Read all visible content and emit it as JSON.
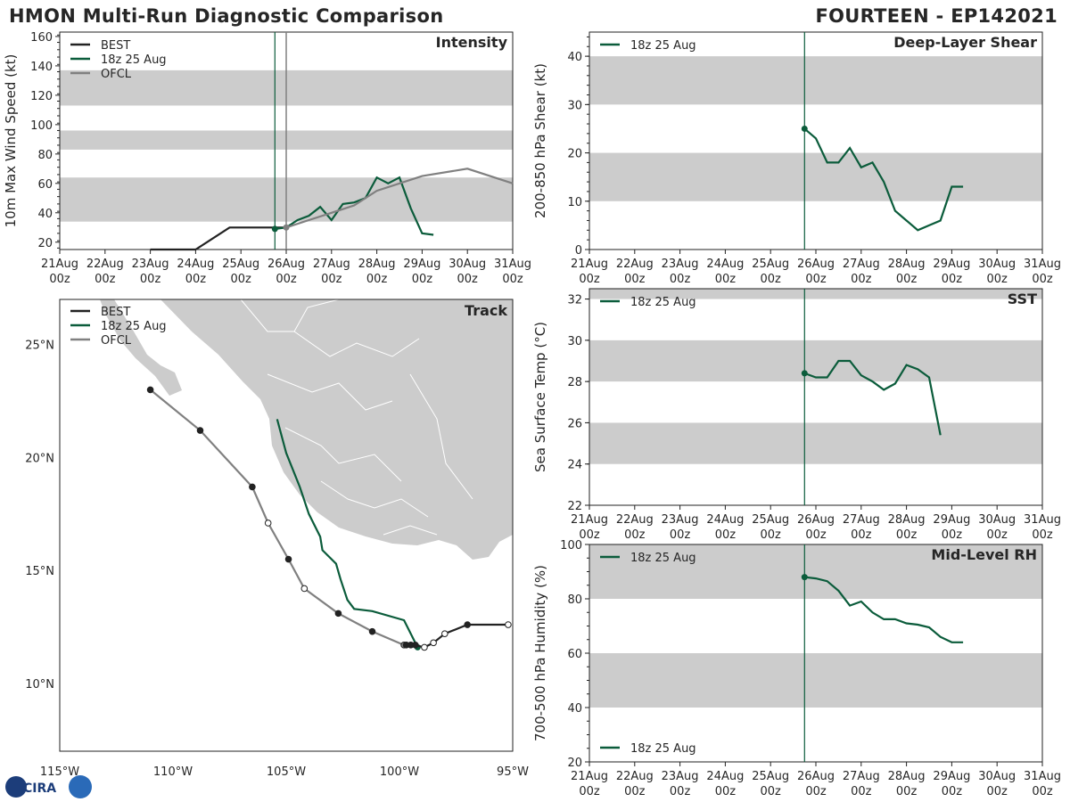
{
  "header": {
    "title_left": "HMON Multi-Run Diagnostic Comparison",
    "title_right": "FOURTEEN - EP142021"
  },
  "colors": {
    "best": "#222222",
    "run": "#0b5c3b",
    "ofcl": "#808080",
    "band": "#cccccc",
    "land": "#cccccc"
  },
  "date_ticks": [
    "21Aug",
    "22Aug",
    "23Aug",
    "24Aug",
    "25Aug",
    "26Aug",
    "27Aug",
    "28Aug",
    "29Aug",
    "30Aug",
    "31Aug"
  ],
  "hour_tick": "00z",
  "chart_data": [
    {
      "type": "line",
      "title": "Intensity",
      "ylabel": "10m Max Wind Speed (kt)",
      "ylim": [
        15,
        163
      ],
      "yticks": [
        20,
        40,
        60,
        80,
        100,
        120,
        140,
        160
      ],
      "bands": [
        [
          34,
          64
        ],
        [
          83,
          96
        ],
        [
          113,
          137
        ]
      ],
      "init_day": 4.75,
      "legend": [
        "BEST",
        "18z 25 Aug",
        "OFCL"
      ],
      "series": [
        {
          "name": "BEST",
          "x": [
            2.0,
            3.0,
            3.75,
            4.75,
            5.0
          ],
          "y": [
            15,
            15,
            30,
            30,
            30
          ]
        },
        {
          "name": "18z 25 Aug",
          "x": [
            4.75,
            5.0,
            5.25,
            5.5,
            5.75,
            6.0,
            6.25,
            6.5,
            6.75,
            7.0,
            7.25,
            7.5,
            7.75,
            8.0,
            8.25
          ],
          "y": [
            29,
            30,
            35,
            38,
            44,
            35,
            46,
            47,
            50,
            64,
            60,
            64,
            43,
            26,
            25
          ]
        },
        {
          "name": "OFCL",
          "x": [
            5.0,
            5.5,
            6.0,
            6.5,
            7.0,
            8.0,
            9.0,
            10.0
          ],
          "y": [
            30,
            35,
            40,
            45,
            55,
            65,
            70,
            60
          ]
        }
      ]
    },
    {
      "type": "line",
      "title": "Deep-Layer Shear",
      "ylabel": "200-850 hPa Shear (kt)",
      "ylim": [
        0,
        45
      ],
      "yticks": [
        0,
        10,
        20,
        30,
        40
      ],
      "bands": [
        [
          10,
          20
        ],
        [
          30,
          40
        ]
      ],
      "init_day": 4.75,
      "legend": [
        "18z 25 Aug"
      ],
      "series": [
        {
          "name": "18z 25 Aug",
          "x": [
            4.75,
            5.0,
            5.25,
            5.5,
            5.75,
            6.0,
            6.25,
            6.5,
            6.75,
            7.0,
            7.25,
            7.5,
            7.75,
            8.0,
            8.25
          ],
          "y": [
            25,
            23,
            18,
            18,
            21,
            17,
            18,
            14,
            8,
            6,
            4,
            5,
            6,
            13,
            13
          ]
        }
      ]
    },
    {
      "type": "line",
      "title": "SST",
      "ylabel": "Sea Surface Temp (°C)",
      "ylim": [
        22,
        32.5
      ],
      "yticks": [
        22,
        24,
        26,
        28,
        30,
        32
      ],
      "bands": [
        [
          24,
          26
        ],
        [
          28,
          30
        ],
        [
          32,
          34
        ]
      ],
      "init_day": 4.75,
      "legend": [
        "18z 25 Aug"
      ],
      "series": [
        {
          "name": "18z 25 Aug",
          "x": [
            4.75,
            5.0,
            5.25,
            5.5,
            5.75,
            6.0,
            6.25,
            6.5,
            6.75,
            7.0,
            7.25,
            7.5,
            7.75
          ],
          "y": [
            28.4,
            28.2,
            28.2,
            29.0,
            29.0,
            28.3,
            28.0,
            27.6,
            27.9,
            28.8,
            28.6,
            28.2,
            25.4
          ]
        }
      ]
    },
    {
      "type": "line",
      "title": "Mid-Level RH",
      "ylabel": "700-500 hPa Humidity (%)",
      "ylim": [
        20,
        100
      ],
      "yticks": [
        20,
        40,
        60,
        80,
        100
      ],
      "bands": [
        [
          40,
          60
        ],
        [
          80,
          100
        ]
      ],
      "init_day": 4.75,
      "legend": [
        "18z 25 Aug"
      ],
      "series": [
        {
          "name": "18z 25 Aug",
          "x": [
            4.75,
            5.0,
            5.25,
            5.5,
            5.75,
            6.0,
            6.25,
            6.5,
            6.75,
            7.0,
            7.25,
            7.5,
            7.75,
            8.0,
            8.25
          ],
          "y": [
            88,
            87.5,
            86.5,
            83,
            77.5,
            79,
            75,
            72.5,
            72.5,
            71,
            70.5,
            69.5,
            66,
            64,
            64
          ]
        }
      ]
    },
    {
      "type": "scatter",
      "title": "Track",
      "xlim": [
        -115,
        -95
      ],
      "ylim": [
        7,
        27
      ],
      "xticks": [
        -115,
        -110,
        -105,
        -100,
        -95
      ],
      "xtick_labels": [
        "115°W",
        "110°W",
        "105°W",
        "100°W",
        "95°W"
      ],
      "yticks": [
        10,
        15,
        20,
        25
      ],
      "ytick_labels": [
        "10°N",
        "15°N",
        "20°N",
        "25°N"
      ],
      "legend": [
        "BEST",
        "18z 25 Aug",
        "OFCL"
      ],
      "series": [
        {
          "name": "BEST",
          "lon": [
            -95.2,
            -97.0,
            -98.0,
            -98.5,
            -98.9,
            -99.3,
            -99.5,
            -99.7
          ],
          "lat": [
            12.6,
            12.6,
            12.2,
            11.8,
            11.6,
            11.7,
            11.7,
            11.7
          ],
          "filled": [
            false,
            true,
            false,
            false,
            false,
            true,
            true,
            true
          ]
        },
        {
          "name": "18z 25 Aug",
          "lon": [
            -99.2,
            -99.8,
            -101.2,
            -102.0,
            -102.3,
            -102.6,
            -102.8,
            -103.4,
            -103.5,
            -104.0,
            -104.4,
            -105.0,
            -105.4
          ],
          "lat": [
            11.6,
            12.8,
            13.2,
            13.3,
            13.7,
            14.6,
            15.3,
            15.9,
            16.5,
            17.5,
            18.7,
            20.2,
            21.7
          ],
          "marked": [
            true,
            false,
            false,
            false,
            false,
            false,
            false,
            false,
            false,
            false,
            false,
            false,
            false
          ]
        },
        {
          "name": "OFCL",
          "lon": [
            -99.8,
            -101.2,
            -102.7,
            -104.2,
            -104.9,
            -105.8,
            -106.5,
            -108.8,
            -111.0
          ],
          "lat": [
            11.7,
            12.3,
            13.1,
            14.2,
            15.5,
            17.1,
            18.7,
            21.2,
            23.0
          ],
          "filled": [
            true,
            true,
            true,
            false,
            true,
            false,
            true,
            true,
            true
          ]
        }
      ]
    }
  ],
  "logo": {
    "text": "CIRA"
  }
}
